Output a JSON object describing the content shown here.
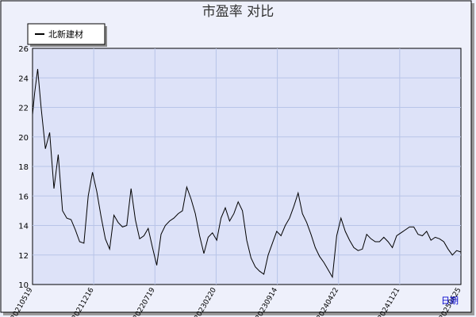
{
  "chart_data": {
    "type": "line",
    "title": "市盈率  对比",
    "xlabel": "日期",
    "ylabel": "",
    "ylim": [
      10,
      26
    ],
    "yticks": [
      10,
      12,
      14,
      16,
      18,
      20,
      22,
      24,
      26
    ],
    "x_tick_labels": [
      "20210519",
      "20211216",
      "20220719",
      "20230220",
      "20230914",
      "20240422",
      "20241121",
      "20250625"
    ],
    "legend": {
      "placement": "top-left",
      "entries": [
        "北新建材"
      ]
    },
    "grid": true,
    "colors": {
      "plot_bg": "#dde2f8",
      "outer_bg": "#eef0fb",
      "grid": "#b8c4e8",
      "line": "#000000",
      "xlabel": "#0000cc"
    },
    "series": [
      {
        "name": "北新建材",
        "x": [
          0,
          0.005,
          0.012,
          0.02,
          0.03,
          0.04,
          0.05,
          0.06,
          0.07,
          0.08,
          0.09,
          0.1,
          0.11,
          0.12,
          0.13,
          0.14,
          0.15,
          0.16,
          0.17,
          0.18,
          0.19,
          0.2,
          0.21,
          0.22,
          0.23,
          0.24,
          0.25,
          0.26,
          0.27,
          0.28,
          0.29,
          0.3,
          0.31,
          0.32,
          0.33,
          0.34,
          0.35,
          0.36,
          0.37,
          0.38,
          0.39,
          0.4,
          0.41,
          0.42,
          0.43,
          0.44,
          0.45,
          0.46,
          0.47,
          0.48,
          0.49,
          0.5,
          0.51,
          0.52,
          0.53,
          0.54,
          0.55,
          0.56,
          0.57,
          0.58,
          0.59,
          0.6,
          0.61,
          0.62,
          0.63,
          0.64,
          0.65,
          0.66,
          0.67,
          0.68,
          0.69,
          0.7,
          0.71,
          0.72,
          0.73,
          0.74,
          0.75,
          0.76,
          0.77,
          0.78,
          0.79,
          0.8,
          0.81,
          0.82,
          0.83,
          0.84,
          0.85,
          0.86,
          0.87,
          0.88,
          0.89,
          0.9,
          0.91,
          0.92,
          0.93,
          0.94,
          0.95,
          0.96,
          0.97,
          0.98,
          0.99,
          1.0
        ],
        "values": [
          21.5,
          23.0,
          24.6,
          22.0,
          19.2,
          20.3,
          16.5,
          18.8,
          15.0,
          14.5,
          14.4,
          13.7,
          12.9,
          12.8,
          16.0,
          17.6,
          16.3,
          14.6,
          13.1,
          12.4,
          14.7,
          14.2,
          13.9,
          14.0,
          16.5,
          14.4,
          13.1,
          13.3,
          13.8,
          12.5,
          11.3,
          13.4,
          14.0,
          14.3,
          14.5,
          14.8,
          15.0,
          16.6,
          15.8,
          14.8,
          13.3,
          12.1,
          13.2,
          13.5,
          13.0,
          14.5,
          15.2,
          14.3,
          14.8,
          15.6,
          15.0,
          13.0,
          11.8,
          11.2,
          10.9,
          10.7,
          12.0,
          12.8,
          13.6,
          13.3,
          14.0,
          14.5,
          15.3,
          16.2,
          14.8,
          14.2,
          13.4,
          12.5,
          11.9,
          11.5,
          11.0,
          10.5,
          13.3,
          14.5,
          13.6,
          13.0,
          12.5,
          12.3,
          12.4,
          13.4,
          13.1,
          12.9,
          12.9,
          13.2,
          12.9,
          12.5,
          13.3,
          13.5,
          13.7,
          13.9,
          13.9,
          13.4,
          13.3,
          13.6,
          13.0,
          13.2,
          13.1,
          12.9,
          12.4,
          12.0,
          12.3,
          12.2
        ]
      }
    ]
  }
}
